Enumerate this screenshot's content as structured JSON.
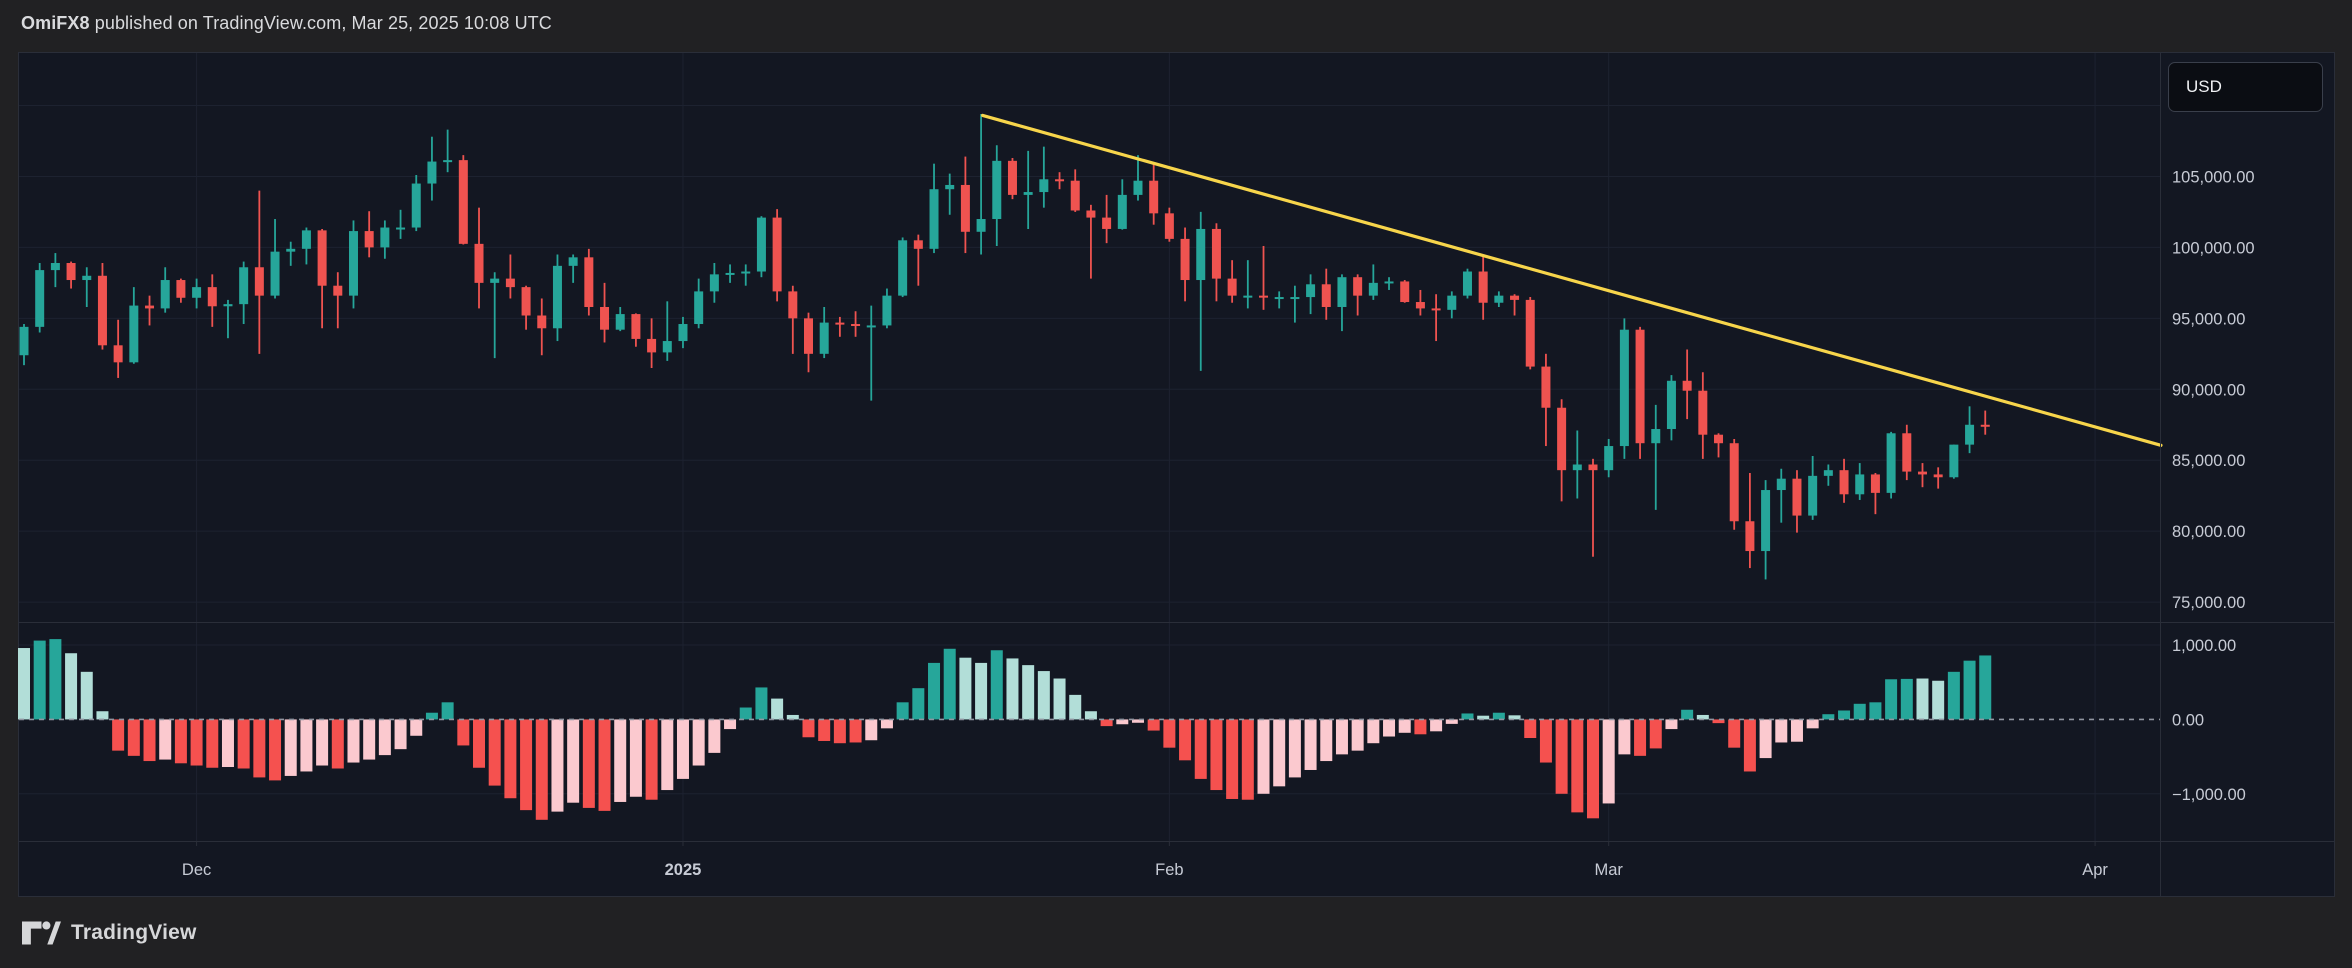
{
  "header": {
    "author": "OmiFX8",
    "published_suffix": " published on TradingView.com, Mar 25, 2025 10:08 UTC"
  },
  "price_scale": {
    "currency": "USD"
  },
  "footer": {
    "brand": "TradingView"
  },
  "colors": {
    "background": "#212123",
    "panel_bg": "#131722",
    "border": "#2a2e39",
    "grid": "#1d2230",
    "up": "#26a69a",
    "down": "#ef5350",
    "hist_up_strong": "#26a69a",
    "hist_up_weak": "#b2ded8",
    "hist_down_strong": "#f5514f",
    "hist_down_weak": "#fbc9cf",
    "zero_line": "#9196a1",
    "trendline": "#f7d54b",
    "axis_text": "#c7cbd5",
    "tick": "#2a2e39"
  },
  "chart_data": {
    "type": "candlestick_with_histogram",
    "description": "Daily candlestick chart (BTC/USD style, Nov 20 2024 - Mar 25 2025) with descending yellow trendline from the Jan 20 high, and a MACD-style histogram lower pane. Prices in USD.",
    "legend_position": "none",
    "grid": true,
    "price_pane": {
      "ylim": [
        73600,
        113700
      ],
      "gridlines": [
        110000,
        105000,
        100000,
        95000,
        90000,
        85000,
        80000,
        75000
      ],
      "ticks": [
        {
          "value": 105000,
          "label": "105,000.00"
        },
        {
          "value": 100000,
          "label": "100,000.00"
        },
        {
          "value": 95000,
          "label": "95,000.00"
        },
        {
          "value": 90000,
          "label": "90,000.00"
        },
        {
          "value": 85000,
          "label": "85,000.00"
        },
        {
          "value": 80000,
          "label": "80,000.00"
        },
        {
          "value": 75000,
          "label": "75,000.00"
        }
      ]
    },
    "histogram_pane": {
      "ylim": [
        -1635,
        1310
      ],
      "gridlines": [
        1000,
        -1000
      ],
      "zero_line_dashed": true,
      "ticks": [
        {
          "value": 1000,
          "label": "1,000.00"
        },
        {
          "value": 0,
          "label": "0.00"
        },
        {
          "value": -1000,
          "label": "−1,000.00"
        }
      ]
    },
    "x_axis": {
      "labels": [
        {
          "text": "Dec",
          "day": 11,
          "bold": false
        },
        {
          "text": "2025",
          "day": 42,
          "bold": true
        },
        {
          "text": "Feb",
          "day": 73,
          "bold": false
        },
        {
          "text": "Mar",
          "day": 101,
          "bold": false
        },
        {
          "text": "Apr",
          "day": 132,
          "bold": false
        }
      ]
    },
    "trendline": {
      "day1": 61.1,
      "price1": 109300,
      "day2": 136.2,
      "price2": 86050
    },
    "candles": [
      [
        92400,
        94600,
        91700,
        94400
      ],
      [
        94400,
        98900,
        94000,
        98400
      ],
      [
        98400,
        99600,
        97200,
        98900
      ],
      [
        98900,
        99000,
        97100,
        97700
      ],
      [
        97700,
        98600,
        95800,
        98000
      ],
      [
        98000,
        98900,
        92800,
        93100
      ],
      [
        93100,
        94900,
        90800,
        91900
      ],
      [
        91900,
        97200,
        91800,
        95900
      ],
      [
        95900,
        96600,
        94500,
        95700
      ],
      [
        95700,
        98600,
        95400,
        97700
      ],
      [
        97700,
        97800,
        96100,
        96450
      ],
      [
        96450,
        97800,
        95700,
        97200
      ],
      [
        97200,
        98100,
        94400,
        95850
      ],
      [
        95850,
        96300,
        93600,
        96000
      ],
      [
        96000,
        99000,
        94600,
        98600
      ],
      [
        98600,
        104000,
        92500,
        96600
      ],
      [
        96600,
        102000,
        96400,
        99700
      ],
      [
        99700,
        100400,
        98700,
        99900
      ],
      [
        99900,
        101400,
        98800,
        101200
      ],
      [
        101200,
        101300,
        94300,
        97300
      ],
      [
        97300,
        98250,
        94300,
        96600
      ],
      [
        96600,
        101900,
        95700,
        101150
      ],
      [
        101150,
        102550,
        99300,
        100000
      ],
      [
        100000,
        101900,
        99200,
        101400
      ],
      [
        101400,
        102650,
        100600,
        101400
      ],
      [
        101400,
        105100,
        101150,
        104500
      ],
      [
        104500,
        107800,
        103300,
        106050
      ],
      [
        106050,
        108300,
        105300,
        106150
      ],
      [
        106150,
        106500,
        100200,
        100250
      ],
      [
        100250,
        102800,
        95700,
        97500
      ],
      [
        97500,
        98250,
        92200,
        97800
      ],
      [
        97800,
        99500,
        96400,
        97200
      ],
      [
        97200,
        97300,
        94200,
        95200
      ],
      [
        95200,
        96400,
        92400,
        94300
      ],
      [
        94300,
        99500,
        93400,
        98700
      ],
      [
        98700,
        99500,
        97500,
        99300
      ],
      [
        99300,
        99900,
        95200,
        95800
      ],
      [
        95800,
        97500,
        93300,
        94200
      ],
      [
        94200,
        95800,
        94100,
        95300
      ],
      [
        95300,
        95350,
        93000,
        93550
      ],
      [
        93550,
        95000,
        91500,
        92600
      ],
      [
        92600,
        96200,
        92000,
        93400
      ],
      [
        93400,
        95100,
        92900,
        94600
      ],
      [
        94600,
        97800,
        94300,
        96900
      ],
      [
        96900,
        98900,
        96100,
        98100
      ],
      [
        98100,
        98800,
        97500,
        98200
      ],
      [
        98200,
        98800,
        97300,
        98300
      ],
      [
        98300,
        102200,
        97900,
        102100
      ],
      [
        102100,
        102700,
        96200,
        96900
      ],
      [
        96900,
        97300,
        92500,
        95000
      ],
      [
        95000,
        95400,
        91200,
        92500
      ],
      [
        92500,
        95800,
        92200,
        94700
      ],
      [
        94700,
        95100,
        93700,
        94600
      ],
      [
        94600,
        95500,
        93700,
        94500
      ],
      [
        94500,
        95900,
        89200,
        94500
      ],
      [
        94500,
        97100,
        94300,
        96600
      ],
      [
        96600,
        100700,
        96500,
        100500
      ],
      [
        100500,
        100900,
        97300,
        99900
      ],
      [
        99900,
        105900,
        99600,
        104100
      ],
      [
        104100,
        105200,
        102300,
        104400
      ],
      [
        104400,
        106400,
        99600,
        101100
      ],
      [
        101100,
        109400,
        99500,
        102000
      ],
      [
        102000,
        107200,
        100100,
        106100
      ],
      [
        106100,
        106300,
        103400,
        103700
      ],
      [
        103700,
        106800,
        101300,
        103900
      ],
      [
        103900,
        107100,
        102800,
        104800
      ],
      [
        104800,
        105300,
        104100,
        104700
      ],
      [
        104700,
        105500,
        102500,
        102600
      ],
      [
        102600,
        103000,
        97800,
        102100
      ],
      [
        102100,
        103700,
        100300,
        101300
      ],
      [
        101300,
        104800,
        101250,
        103700
      ],
      [
        103700,
        106500,
        103300,
        104700
      ],
      [
        104700,
        106000,
        101600,
        102400
      ],
      [
        102400,
        102800,
        100400,
        100600
      ],
      [
        100600,
        101400,
        96200,
        97700
      ],
      [
        97700,
        102500,
        91300,
        101300
      ],
      [
        101300,
        101700,
        96200,
        97800
      ],
      [
        97800,
        99100,
        96100,
        96600
      ],
      [
        96600,
        99100,
        95700,
        96600
      ],
      [
        96600,
        100100,
        95600,
        96500
      ],
      [
        96500,
        96900,
        95700,
        96500
      ],
      [
        96500,
        97300,
        94700,
        96500
      ],
      [
        96500,
        98100,
        95300,
        97400
      ],
      [
        97400,
        98500,
        94900,
        95800
      ],
      [
        95800,
        98100,
        94100,
        97900
      ],
      [
        97900,
        98100,
        95200,
        96600
      ],
      [
        96600,
        98800,
        96300,
        97500
      ],
      [
        97500,
        97900,
        97000,
        97600
      ],
      [
        97600,
        97700,
        96100,
        96150
      ],
      [
        96150,
        97000,
        95200,
        95700
      ],
      [
        95700,
        96700,
        93400,
        95600
      ],
      [
        95600,
        96900,
        95000,
        96600
      ],
      [
        96600,
        98500,
        96400,
        98300
      ],
      [
        98300,
        99500,
        94900,
        96100
      ],
      [
        96100,
        96900,
        95800,
        96600
      ],
      [
        96600,
        96700,
        95200,
        96300
      ],
      [
        96300,
        96500,
        91400,
        91600
      ],
      [
        91600,
        92500,
        86000,
        88700
      ],
      [
        88700,
        89300,
        82100,
        84300
      ],
      [
        84300,
        87100,
        82300,
        84700
      ],
      [
        84700,
        85100,
        78200,
        84300
      ],
      [
        84300,
        86500,
        83800,
        86000
      ],
      [
        86000,
        95000,
        85100,
        94200
      ],
      [
        94200,
        94400,
        85100,
        86200
      ],
      [
        86200,
        88900,
        81500,
        87200
      ],
      [
        87200,
        91000,
        86400,
        90600
      ],
      [
        90600,
        92800,
        87900,
        89900
      ],
      [
        89900,
        91200,
        85100,
        86800
      ],
      [
        86800,
        86900,
        85200,
        86200
      ],
      [
        86200,
        86500,
        80100,
        80700
      ],
      [
        80700,
        84100,
        77400,
        78600
      ],
      [
        78600,
        83600,
        76600,
        82900
      ],
      [
        82900,
        84400,
        80600,
        83700
      ],
      [
        83700,
        84300,
        79900,
        81100
      ],
      [
        81100,
        85300,
        80800,
        83900
      ],
      [
        83900,
        84700,
        83200,
        84300
      ],
      [
        84300,
        85100,
        82000,
        82600
      ],
      [
        82600,
        84800,
        82200,
        84000
      ],
      [
        84000,
        84100,
        81200,
        82700
      ],
      [
        82700,
        87000,
        82300,
        86900
      ],
      [
        86900,
        87500,
        83600,
        84200
      ],
      [
        84200,
        84800,
        83100,
        84000
      ],
      [
        84000,
        84500,
        83000,
        83800
      ],
      [
        83800,
        86100,
        83700,
        86100
      ],
      [
        86100,
        88800,
        85500,
        87500
      ],
      [
        87500,
        88500,
        86800,
        87400
      ]
    ],
    "histogram": [
      [
        960,
        "G"
      ],
      [
        1060,
        "g"
      ],
      [
        1080,
        "g"
      ],
      [
        890,
        "G"
      ],
      [
        640,
        "G"
      ],
      [
        110,
        "G"
      ],
      [
        -420,
        "r"
      ],
      [
        -490,
        "r"
      ],
      [
        -560,
        "r"
      ],
      [
        -540,
        "R"
      ],
      [
        -590,
        "r"
      ],
      [
        -620,
        "r"
      ],
      [
        -650,
        "r"
      ],
      [
        -640,
        "R"
      ],
      [
        -660,
        "r"
      ],
      [
        -780,
        "r"
      ],
      [
        -820,
        "r"
      ],
      [
        -760,
        "R"
      ],
      [
        -700,
        "R"
      ],
      [
        -620,
        "R"
      ],
      [
        -660,
        "r"
      ],
      [
        -580,
        "R"
      ],
      [
        -540,
        "R"
      ],
      [
        -480,
        "R"
      ],
      [
        -400,
        "R"
      ],
      [
        -220,
        "R"
      ],
      [
        90,
        "g"
      ],
      [
        230,
        "g"
      ],
      [
        -350,
        "r"
      ],
      [
        -650,
        "r"
      ],
      [
        -890,
        "r"
      ],
      [
        -1060,
        "r"
      ],
      [
        -1220,
        "r"
      ],
      [
        -1350,
        "r"
      ],
      [
        -1240,
        "R"
      ],
      [
        -1120,
        "R"
      ],
      [
        -1190,
        "r"
      ],
      [
        -1230,
        "r"
      ],
      [
        -1110,
        "R"
      ],
      [
        -1040,
        "R"
      ],
      [
        -1080,
        "r"
      ],
      [
        -950,
        "R"
      ],
      [
        -800,
        "R"
      ],
      [
        -620,
        "R"
      ],
      [
        -450,
        "R"
      ],
      [
        -130,
        "R"
      ],
      [
        160,
        "g"
      ],
      [
        430,
        "g"
      ],
      [
        280,
        "G"
      ],
      [
        60,
        "G"
      ],
      [
        -240,
        "r"
      ],
      [
        -290,
        "r"
      ],
      [
        -320,
        "r"
      ],
      [
        -310,
        "r"
      ],
      [
        -280,
        "R"
      ],
      [
        -120,
        "R"
      ],
      [
        230,
        "g"
      ],
      [
        420,
        "g"
      ],
      [
        760,
        "g"
      ],
      [
        950,
        "g"
      ],
      [
        830,
        "G"
      ],
      [
        760,
        "G"
      ],
      [
        930,
        "g"
      ],
      [
        820,
        "G"
      ],
      [
        730,
        "G"
      ],
      [
        650,
        "G"
      ],
      [
        550,
        "G"
      ],
      [
        330,
        "G"
      ],
      [
        110,
        "G"
      ],
      [
        -90,
        "r"
      ],
      [
        -65,
        "R"
      ],
      [
        -45,
        "R"
      ],
      [
        -150,
        "r"
      ],
      [
        -380,
        "r"
      ],
      [
        -550,
        "r"
      ],
      [
        -800,
        "r"
      ],
      [
        -950,
        "r"
      ],
      [
        -1070,
        "r"
      ],
      [
        -1080,
        "r"
      ],
      [
        -1000,
        "R"
      ],
      [
        -900,
        "R"
      ],
      [
        -780,
        "R"
      ],
      [
        -680,
        "R"
      ],
      [
        -560,
        "R"
      ],
      [
        -470,
        "R"
      ],
      [
        -420,
        "R"
      ],
      [
        -320,
        "R"
      ],
      [
        -230,
        "R"
      ],
      [
        -180,
        "R"
      ],
      [
        -200,
        "r"
      ],
      [
        -160,
        "R"
      ],
      [
        -60,
        "R"
      ],
      [
        80,
        "g"
      ],
      [
        50,
        "G"
      ],
      [
        90,
        "g"
      ],
      [
        55,
        "G"
      ],
      [
        -250,
        "r"
      ],
      [
        -580,
        "r"
      ],
      [
        -1000,
        "r"
      ],
      [
        -1250,
        "r"
      ],
      [
        -1330,
        "r"
      ],
      [
        -1130,
        "R"
      ],
      [
        -470,
        "R"
      ],
      [
        -490,
        "r"
      ],
      [
        -390,
        "r"
      ],
      [
        -130,
        "R"
      ],
      [
        130,
        "g"
      ],
      [
        60,
        "G"
      ],
      [
        -50,
        "r"
      ],
      [
        -380,
        "r"
      ],
      [
        -700,
        "r"
      ],
      [
        -520,
        "R"
      ],
      [
        -310,
        "R"
      ],
      [
        -300,
        "R"
      ],
      [
        -120,
        "R"
      ],
      [
        70,
        "g"
      ],
      [
        120,
        "g"
      ],
      [
        210,
        "g"
      ],
      [
        230,
        "g"
      ],
      [
        540,
        "g"
      ],
      [
        545,
        "g"
      ],
      [
        550,
        "G"
      ],
      [
        520,
        "G"
      ],
      [
        640,
        "g"
      ],
      [
        790,
        "g"
      ],
      [
        860,
        "g"
      ]
    ]
  }
}
